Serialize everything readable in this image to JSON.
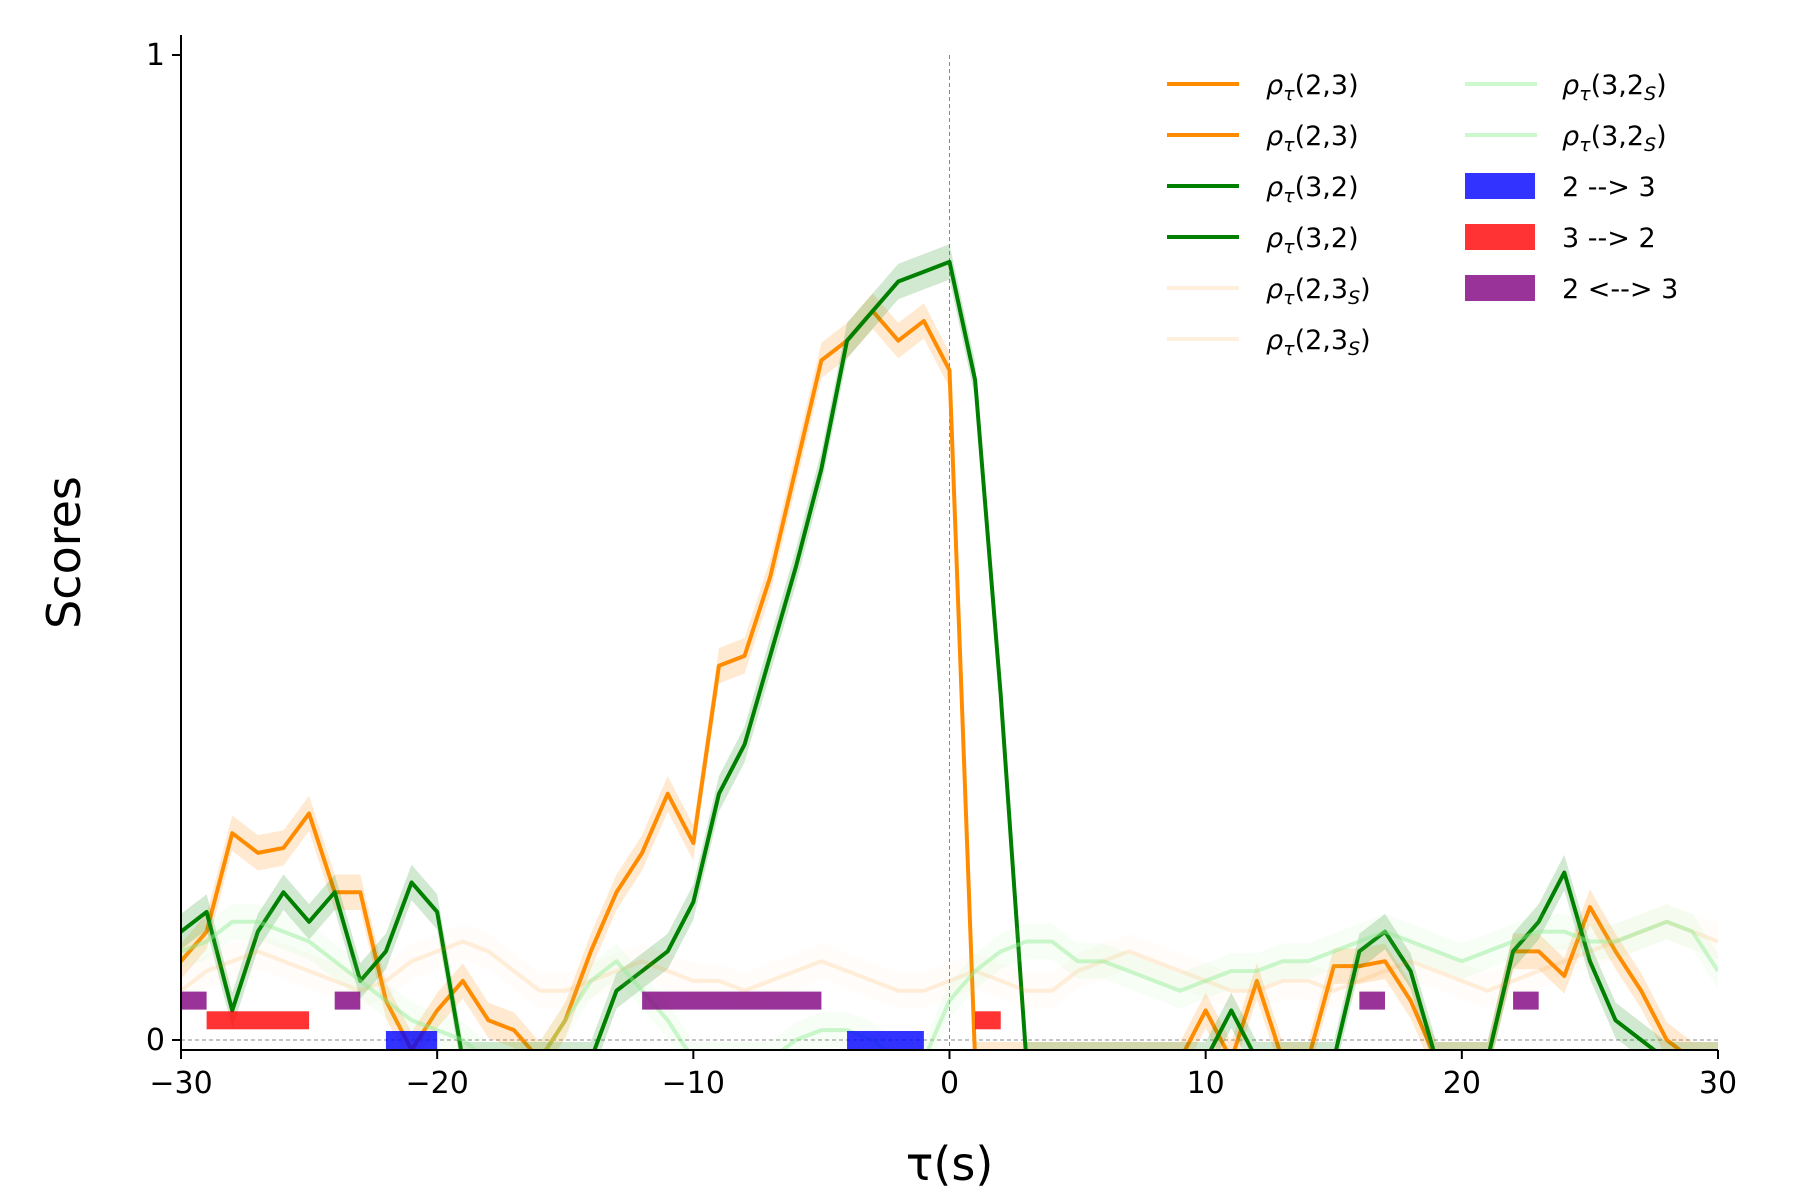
{
  "chart_data": {
    "type": "line",
    "xlabel": "τ(s)",
    "ylabel": "Scores",
    "xlim": [
      -30,
      30
    ],
    "ylim": [
      0,
      1
    ],
    "xticks": [
      "−30",
      "−20",
      "−10",
      "0",
      "10",
      "20",
      "30"
    ],
    "xtick_values": [
      -30,
      -20,
      -10,
      0,
      10,
      20,
      30
    ],
    "yticks": [
      "0",
      "1"
    ],
    "ytick_values": [
      0,
      1
    ],
    "reference_lines": {
      "vertical_at_x": 0,
      "horizontal_at_y": 0,
      "style": "dashed gray"
    },
    "legend_position": "top-right",
    "series": [
      {
        "name": "ρτ(2,3)",
        "color": "#ff8c00",
        "opacity": 1,
        "x": [
          -30,
          -29,
          -28,
          -27,
          -26,
          -25,
          -24,
          -23,
          -22,
          -21,
          -20,
          -19,
          -18,
          -17,
          -16,
          -15,
          -14,
          -13,
          -12,
          -11,
          -10,
          -9,
          -8,
          -7,
          -6,
          -5,
          -4,
          -3,
          -2,
          -1,
          0,
          1,
          2,
          3,
          4,
          5,
          6,
          7,
          8,
          9,
          10,
          11,
          12,
          13,
          14,
          15,
          16,
          17,
          18,
          19,
          20,
          21,
          22,
          23,
          24,
          25,
          26,
          27,
          28,
          29,
          30
        ],
        "y": [
          0.08,
          0.11,
          0.21,
          0.19,
          0.195,
          0.23,
          0.15,
          0.15,
          0.04,
          -0.01,
          0.03,
          0.06,
          0.02,
          0.01,
          -0.02,
          0.02,
          0.09,
          0.15,
          0.19,
          0.25,
          0.2,
          0.38,
          0.39,
          0.47,
          0.58,
          0.69,
          0.71,
          0.74,
          0.71,
          0.73,
          0.68,
          -0.02,
          -0.02,
          -0.02,
          -0.02,
          -0.02,
          -0.02,
          -0.02,
          -0.02,
          -0.02,
          0.03,
          -0.02,
          0.06,
          -0.02,
          -0.02,
          0.075,
          0.075,
          0.08,
          0.04,
          -0.02,
          -0.02,
          -0.02,
          0.09,
          0.09,
          0.065,
          0.135,
          0.09,
          0.05,
          0.0,
          -0.02,
          -0.02
        ]
      },
      {
        "name": "ρτ(2,3)",
        "color": "#ff8c00",
        "opacity": 1,
        "x": [],
        "y": []
      },
      {
        "name": "ρτ(3,2)",
        "color": "#008000",
        "opacity": 1,
        "x": [
          -30,
          -29,
          -28,
          -27,
          -26,
          -25,
          -24,
          -23,
          -22,
          -21,
          -20,
          -19,
          -18,
          -17,
          -16,
          -15,
          -14,
          -13,
          -12,
          -11,
          -10,
          -9,
          -8,
          -7,
          -6,
          -5,
          -4,
          -3,
          -2,
          -1,
          0,
          1,
          2,
          3,
          4,
          5,
          6,
          7,
          8,
          9,
          10,
          11,
          12,
          13,
          14,
          15,
          16,
          17,
          18,
          19,
          20,
          21,
          22,
          23,
          24,
          25,
          26,
          27,
          28,
          29,
          30
        ],
        "y": [
          0.11,
          0.13,
          0.03,
          0.11,
          0.15,
          0.12,
          0.15,
          0.06,
          0.09,
          0.16,
          0.13,
          -0.02,
          -0.02,
          -0.02,
          -0.02,
          -0.02,
          -0.02,
          0.05,
          0.07,
          0.09,
          0.14,
          0.25,
          0.3,
          0.39,
          0.48,
          0.58,
          0.71,
          0.74,
          0.77,
          0.78,
          0.79,
          0.67,
          0.35,
          -0.02,
          -0.02,
          -0.02,
          -0.02,
          -0.02,
          -0.02,
          -0.02,
          -0.02,
          0.03,
          -0.02,
          -0.02,
          -0.02,
          -0.02,
          0.09,
          0.11,
          0.07,
          -0.02,
          -0.02,
          -0.02,
          0.09,
          0.12,
          0.17,
          0.08,
          0.02,
          0.0,
          -0.02,
          -0.02,
          -0.02
        ]
      },
      {
        "name": "ρτ(3,2)",
        "color": "#008000",
        "opacity": 1,
        "x": [],
        "y": []
      },
      {
        "name": "ρτ(2,3S)",
        "color": "#ff8c00",
        "opacity": 0.13,
        "x": [
          -30,
          -29,
          -28,
          -27,
          -26,
          -25,
          -24,
          -23,
          -22,
          -21,
          -20,
          -19,
          -18,
          -17,
          -16,
          -15,
          -14,
          -13,
          -12,
          -11,
          -10,
          -9,
          -8,
          -7,
          -6,
          -5,
          -4,
          -3,
          -2,
          -1,
          0,
          1,
          2,
          3,
          4,
          5,
          6,
          7,
          8,
          9,
          10,
          11,
          12,
          13,
          14,
          15,
          16,
          17,
          18,
          19,
          20,
          21,
          22,
          23,
          24,
          25,
          26,
          27,
          28,
          29,
          30
        ],
        "y": [
          0.05,
          0.07,
          0.08,
          0.09,
          0.08,
          0.07,
          0.06,
          0.05,
          0.06,
          0.08,
          0.09,
          0.1,
          0.09,
          0.07,
          0.05,
          0.05,
          0.06,
          0.07,
          0.08,
          0.07,
          0.06,
          0.06,
          0.05,
          0.06,
          0.07,
          0.08,
          0.07,
          0.06,
          0.05,
          0.05,
          0.06,
          0.07,
          0.06,
          0.05,
          0.05,
          0.07,
          0.08,
          0.09,
          0.08,
          0.07,
          0.06,
          0.05,
          0.05,
          0.06,
          0.06,
          0.05,
          0.06,
          0.07,
          0.08,
          0.07,
          0.06,
          0.05,
          0.06,
          0.07,
          0.08,
          0.09,
          0.1,
          0.11,
          0.12,
          0.11,
          0.1
        ]
      },
      {
        "name": "ρτ(2,3S)",
        "color": "#ff8c00",
        "opacity": 0.13,
        "x": [],
        "y": []
      },
      {
        "name": "ρτ(3,2S)",
        "color": "#90ee90",
        "opacity": 0.45,
        "x": [
          -30,
          -29,
          -28,
          -27,
          -26,
          -25,
          -24,
          -23,
          -22,
          -21,
          -20,
          -19,
          -18,
          -17,
          -16,
          -15,
          -14,
          -13,
          -12,
          -11,
          -10,
          -9,
          -8,
          -7,
          -6,
          -5,
          -4,
          -3,
          -2,
          -1,
          0,
          1,
          2,
          3,
          4,
          5,
          6,
          7,
          8,
          9,
          10,
          11,
          12,
          13,
          14,
          15,
          16,
          17,
          18,
          19,
          20,
          21,
          22,
          23,
          24,
          25,
          26,
          27,
          28,
          29,
          30
        ],
        "y": [
          0.09,
          0.1,
          0.12,
          0.12,
          0.11,
          0.1,
          0.08,
          0.06,
          0.04,
          0.02,
          0.01,
          0.0,
          -0.02,
          -0.02,
          -0.02,
          0.02,
          0.06,
          0.08,
          0.05,
          0.02,
          -0.02,
          -0.02,
          -0.02,
          -0.02,
          0.0,
          0.01,
          0.01,
          0.0,
          -0.02,
          -0.02,
          0.04,
          0.07,
          0.09,
          0.1,
          0.1,
          0.08,
          0.08,
          0.07,
          0.06,
          0.05,
          0.06,
          0.07,
          0.07,
          0.08,
          0.08,
          0.09,
          0.1,
          0.11,
          0.1,
          0.09,
          0.08,
          0.09,
          0.1,
          0.11,
          0.11,
          0.1,
          0.1,
          0.11,
          0.12,
          0.11,
          0.07
        ]
      },
      {
        "name": "ρτ(3,2S)",
        "color": "#90ee90",
        "opacity": 0.45,
        "x": [],
        "y": []
      }
    ],
    "significance_bars": [
      {
        "name": "2 --> 3",
        "color": "#0000ff",
        "intervals": [
          [
            -22,
            -20
          ],
          [
            -4,
            -1
          ]
        ],
        "y": 0.0
      },
      {
        "name": "3 --> 2",
        "color": "#ff0000",
        "intervals": [
          [
            -29,
            -25
          ],
          [
            1,
            2
          ]
        ],
        "y": 0.02
      },
      {
        "name": "2 <--> 3",
        "color": "#800080",
        "intervals": [
          [
            -30,
            -29
          ],
          [
            -24,
            -23
          ],
          [
            -12,
            -5
          ],
          [
            16,
            17
          ],
          [
            22,
            23
          ]
        ],
        "y": 0.04
      }
    ],
    "legend": {
      "col1": [
        "ρτ(2,3)",
        "ρτ(2,3)",
        "ρτ(3,2)",
        "ρτ(3,2)",
        "ρτ(2,3S)",
        "ρτ(2,3S)"
      ],
      "col2": [
        "ρτ(3,2S)",
        "ρτ(3,2S)",
        "2 --> 3",
        "3 --> 2",
        "2 <--> 3"
      ]
    }
  }
}
